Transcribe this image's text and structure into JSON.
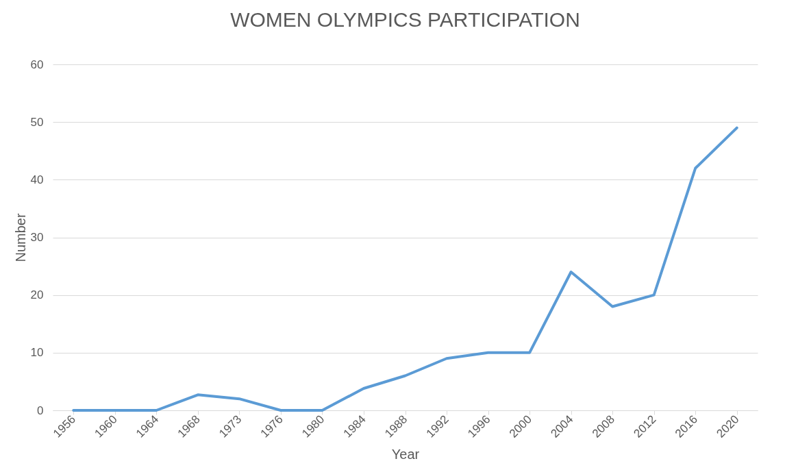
{
  "chart_data": {
    "type": "line",
    "title": "WOMEN OLYMPICS PARTICIPATION",
    "xlabel": "Year",
    "ylabel": "Number",
    "categories": [
      "1956",
      "1960",
      "1964",
      "1968",
      "1973",
      "1976",
      "1980",
      "1984",
      "1988",
      "1992",
      "1996",
      "2000",
      "2004",
      "2008",
      "2012",
      "2016",
      "2020"
    ],
    "series": [
      {
        "color": "#5b9bd5",
        "values": [
          0,
          0,
          0,
          2.7,
          2,
          0,
          0,
          3.8,
          6,
          9,
          10,
          10,
          24,
          18,
          20,
          42,
          49
        ]
      }
    ],
    "ylim": [
      0,
      60
    ],
    "yticks": [
      0,
      10,
      20,
      30,
      40,
      50,
      60
    ],
    "grid": "y",
    "marker": "none",
    "line_style": "solid"
  }
}
